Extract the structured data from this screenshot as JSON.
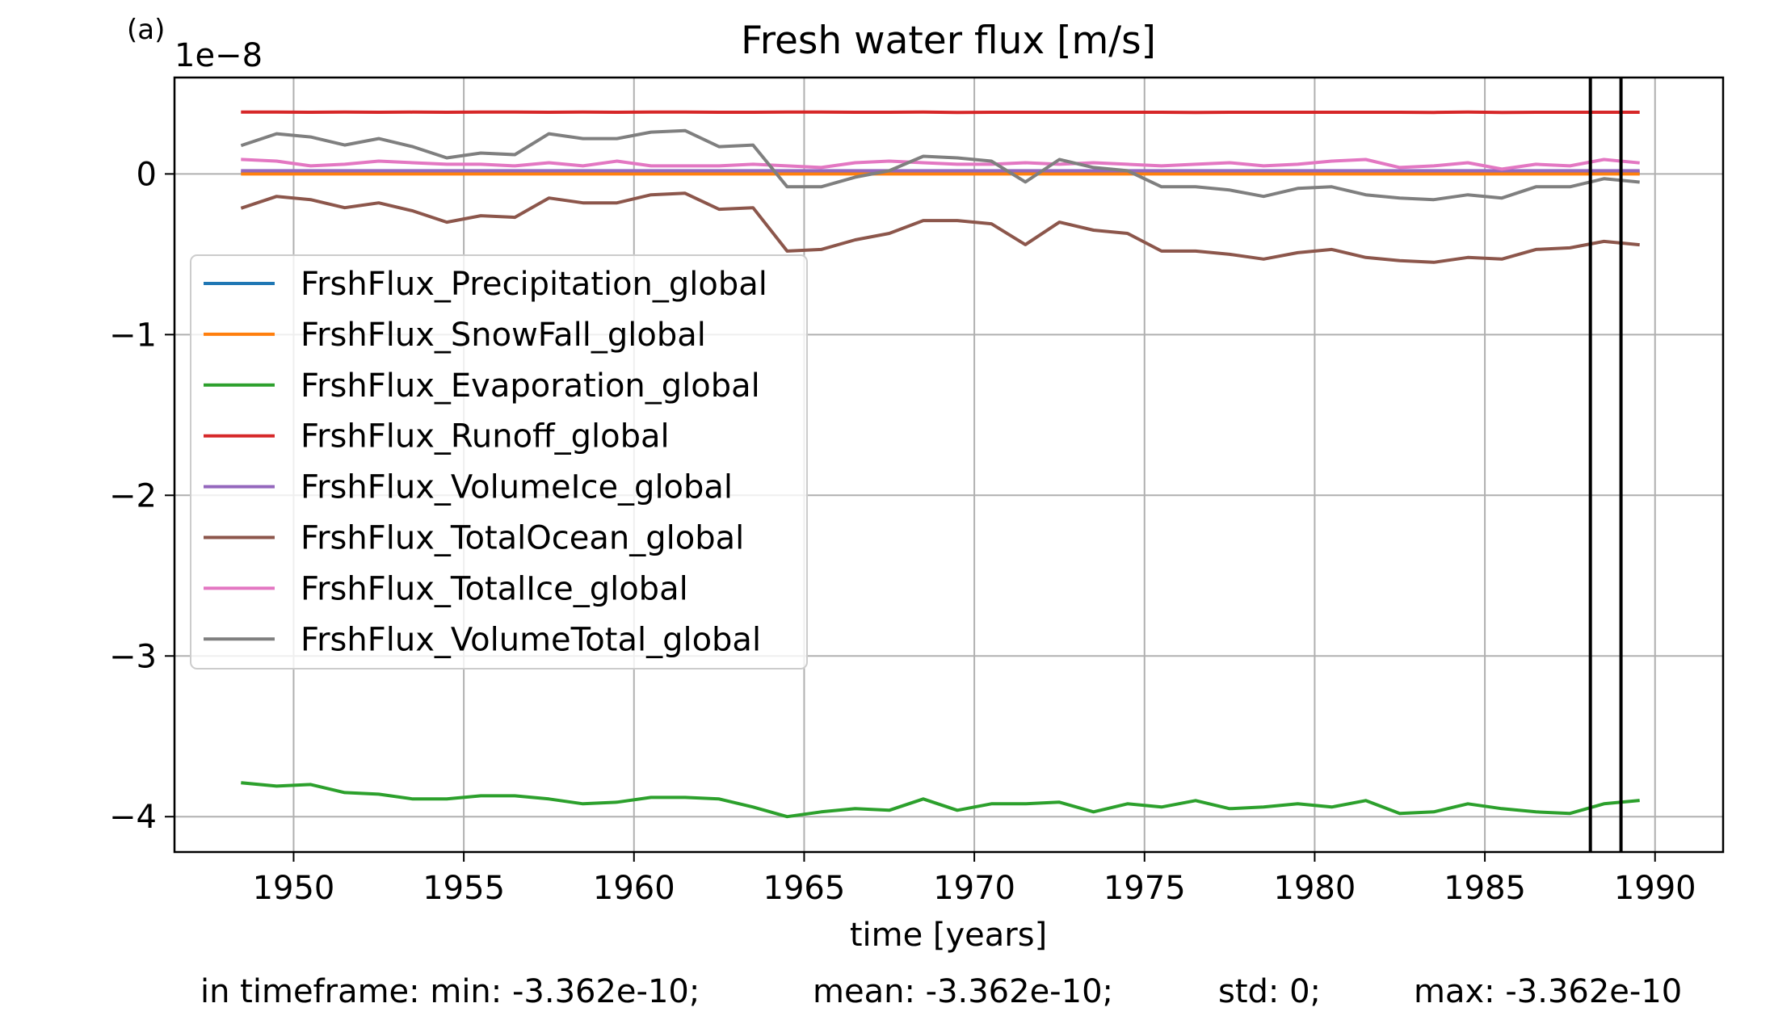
{
  "chart_data": {
    "type": "line",
    "panel_label": "(a)",
    "title": "Fresh water flux [m/s]",
    "xlabel": "time [years]",
    "ylabel": "",
    "y_offset_label": "1e−8",
    "xlim": [
      1946.5,
      1992
    ],
    "ylim": [
      -4.22,
      0.6
    ],
    "xticks": [
      1950,
      1955,
      1960,
      1965,
      1970,
      1975,
      1980,
      1985,
      1990
    ],
    "yticks": [
      0,
      -1,
      -2,
      -3,
      -4
    ],
    "ytick_labels": [
      "0",
      "−1",
      "−2",
      "−3",
      "−4"
    ],
    "grid": true,
    "legend_position": "center-left",
    "vertical_lines": [
      1988.1,
      1989.0
    ],
    "x": [
      1948.5,
      1949.5,
      1950.5,
      1951.5,
      1952.5,
      1953.5,
      1954.5,
      1955.5,
      1956.5,
      1957.5,
      1958.5,
      1959.5,
      1960.5,
      1961.5,
      1962.5,
      1963.5,
      1964.5,
      1965.5,
      1966.5,
      1967.5,
      1968.5,
      1969.5,
      1970.5,
      1971.5,
      1972.5,
      1973.5,
      1974.5,
      1975.5,
      1976.5,
      1977.5,
      1978.5,
      1979.5,
      1980.5,
      1981.5,
      1982.5,
      1983.5,
      1984.5,
      1985.5,
      1986.5,
      1987.5,
      1988.5,
      1989.5
    ],
    "series": [
      {
        "name": "FrshFlux_Precipitation_global",
        "color": "#1f77b4",
        "values": [
          0.01,
          0.01,
          0.01,
          0.01,
          0.01,
          0.01,
          0.01,
          0.01,
          0.01,
          0.01,
          0.01,
          0.01,
          0.01,
          0.01,
          0.01,
          0.01,
          0.01,
          0.01,
          0.01,
          0.01,
          0.01,
          0.01,
          0.01,
          0.01,
          0.01,
          0.01,
          0.01,
          0.01,
          0.01,
          0.01,
          0.01,
          0.01,
          0.01,
          0.01,
          0.01,
          0.01,
          0.01,
          0.01,
          0.01,
          0.01,
          0.01,
          0.01
        ]
      },
      {
        "name": "FrshFlux_SnowFall_global",
        "color": "#ff7f0e",
        "values": [
          0.0,
          0.0,
          0.0,
          0.0,
          0.0,
          0.0,
          0.0,
          0.0,
          0.0,
          0.0,
          0.0,
          0.0,
          0.0,
          0.0,
          0.0,
          0.0,
          0.0,
          0.0,
          0.0,
          0.0,
          0.0,
          0.0,
          0.0,
          0.0,
          0.0,
          0.0,
          0.0,
          0.0,
          0.0,
          0.0,
          0.0,
          0.0,
          0.0,
          0.0,
          0.0,
          0.0,
          0.0,
          0.0,
          0.0,
          0.0,
          0.0,
          0.0
        ]
      },
      {
        "name": "FrshFlux_Evaporation_global",
        "color": "#2ca02c",
        "values": [
          -3.79,
          -3.81,
          -3.8,
          -3.85,
          -3.86,
          -3.89,
          -3.89,
          -3.87,
          -3.87,
          -3.89,
          -3.92,
          -3.91,
          -3.88,
          -3.88,
          -3.89,
          -3.94,
          -4.0,
          -3.97,
          -3.95,
          -3.96,
          -3.89,
          -3.96,
          -3.92,
          -3.92,
          -3.91,
          -3.97,
          -3.92,
          -3.94,
          -3.9,
          -3.95,
          -3.94,
          -3.92,
          -3.94,
          -3.9,
          -3.98,
          -3.97,
          -3.92,
          -3.95,
          -3.97,
          -3.98,
          -3.92,
          -3.9
        ]
      },
      {
        "name": "FrshFlux_Runoff_global",
        "color": "#d62728",
        "values": [
          0.385,
          0.385,
          0.384,
          0.385,
          0.384,
          0.385,
          0.384,
          0.385,
          0.385,
          0.384,
          0.385,
          0.384,
          0.385,
          0.385,
          0.384,
          0.384,
          0.385,
          0.385,
          0.384,
          0.384,
          0.385,
          0.383,
          0.384,
          0.384,
          0.384,
          0.384,
          0.384,
          0.384,
          0.383,
          0.384,
          0.384,
          0.384,
          0.384,
          0.384,
          0.384,
          0.383,
          0.385,
          0.383,
          0.384,
          0.384,
          0.384,
          0.384
        ]
      },
      {
        "name": "FrshFlux_VolumeIce_global",
        "color": "#9467bd",
        "values": [
          0.02,
          0.02,
          0.02,
          0.02,
          0.02,
          0.02,
          0.02,
          0.02,
          0.02,
          0.02,
          0.02,
          0.02,
          0.02,
          0.02,
          0.02,
          0.02,
          0.02,
          0.02,
          0.02,
          0.02,
          0.02,
          0.02,
          0.02,
          0.02,
          0.02,
          0.02,
          0.02,
          0.02,
          0.02,
          0.02,
          0.02,
          0.02,
          0.02,
          0.02,
          0.02,
          0.02,
          0.02,
          0.02,
          0.02,
          0.02,
          0.02,
          0.02
        ]
      },
      {
        "name": "FrshFlux_TotalOcean_global",
        "color": "#8c564b",
        "values": [
          -0.21,
          -0.14,
          -0.16,
          -0.21,
          -0.18,
          -0.23,
          -0.3,
          -0.26,
          -0.27,
          -0.15,
          -0.18,
          -0.18,
          -0.13,
          -0.12,
          -0.22,
          -0.21,
          -0.48,
          -0.47,
          -0.41,
          -0.37,
          -0.29,
          -0.29,
          -0.31,
          -0.44,
          -0.3,
          -0.35,
          -0.37,
          -0.48,
          -0.48,
          -0.5,
          -0.53,
          -0.49,
          -0.47,
          -0.52,
          -0.54,
          -0.55,
          -0.52,
          -0.53,
          -0.47,
          -0.46,
          -0.42,
          -0.44
        ]
      },
      {
        "name": "FrshFlux_TotalIce_global",
        "color": "#e377c2",
        "values": [
          0.09,
          0.08,
          0.05,
          0.06,
          0.08,
          0.07,
          0.06,
          0.06,
          0.05,
          0.07,
          0.05,
          0.08,
          0.05,
          0.05,
          0.05,
          0.06,
          0.05,
          0.04,
          0.07,
          0.08,
          0.07,
          0.06,
          0.06,
          0.07,
          0.06,
          0.07,
          0.06,
          0.05,
          0.06,
          0.07,
          0.05,
          0.06,
          0.08,
          0.09,
          0.04,
          0.05,
          0.07,
          0.03,
          0.06,
          0.05,
          0.09,
          0.07
        ]
      },
      {
        "name": "FrshFlux_VolumeTotal_global",
        "color": "#7f7f7f",
        "values": [
          0.18,
          0.25,
          0.23,
          0.18,
          0.22,
          0.17,
          0.1,
          0.13,
          0.12,
          0.25,
          0.22,
          0.22,
          0.26,
          0.27,
          0.17,
          0.18,
          -0.08,
          -0.08,
          -0.02,
          0.02,
          0.11,
          0.1,
          0.08,
          -0.05,
          0.09,
          0.04,
          0.02,
          -0.08,
          -0.08,
          -0.1,
          -0.14,
          -0.09,
          -0.08,
          -0.13,
          -0.15,
          -0.16,
          -0.13,
          -0.15,
          -0.08,
          -0.08,
          -0.03,
          -0.05
        ]
      }
    ]
  },
  "stats": {
    "min": "in timeframe: min: -3.362e-10;",
    "mean": "mean: -3.362e-10;",
    "std": "std: 0;",
    "max": "max: -3.362e-10"
  }
}
